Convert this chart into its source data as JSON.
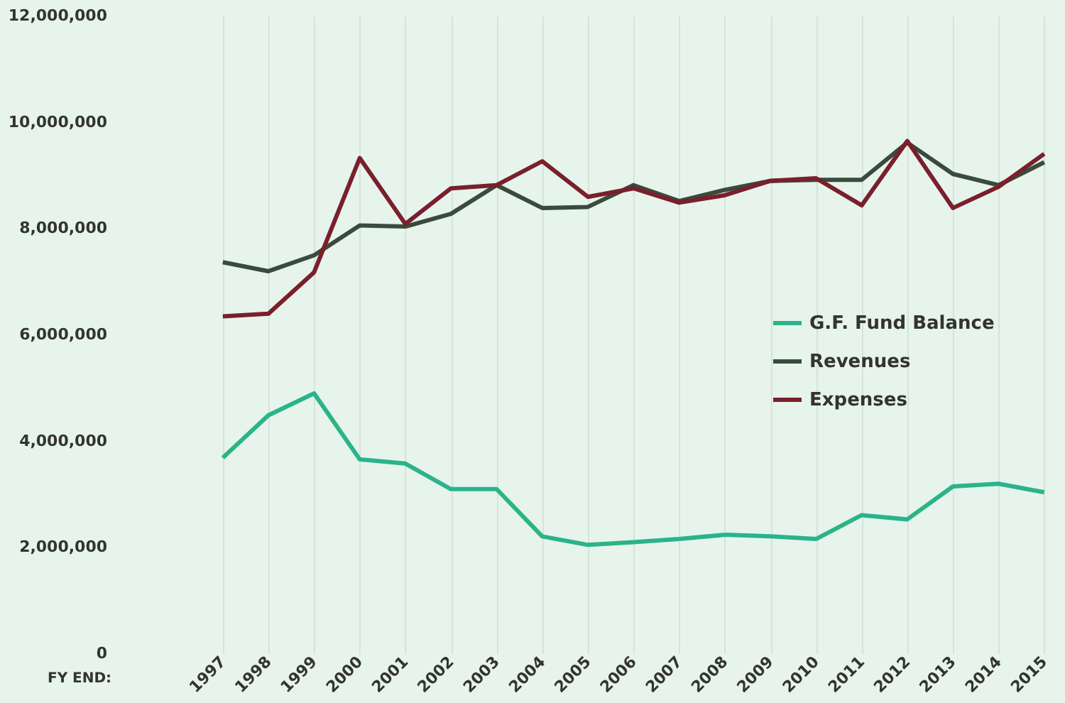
{
  "chart_data": {
    "type": "line",
    "xlabel": "FY END:",
    "categories": [
      "1997",
      "1998",
      "1999",
      "2000",
      "2001",
      "2002",
      "2003",
      "2004",
      "2005",
      "2006",
      "2007",
      "2008",
      "2009",
      "2010",
      "2011",
      "2012",
      "2013",
      "2014",
      "2015"
    ],
    "series": [
      {
        "name": "G.F. Fund Balance",
        "color": "#2bb38a",
        "values": [
          3680000,
          4480000,
          4890000,
          3650000,
          3570000,
          3090000,
          3090000,
          2200000,
          2040000,
          2090000,
          2150000,
          2230000,
          2200000,
          2150000,
          2600000,
          2520000,
          3140000,
          3190000,
          3030000
        ]
      },
      {
        "name": "Revenues",
        "color": "#3a4a3c",
        "values": [
          7360000,
          7190000,
          7490000,
          8050000,
          8030000,
          8270000,
          8810000,
          8380000,
          8400000,
          8810000,
          8510000,
          8720000,
          8890000,
          8910000,
          8910000,
          9610000,
          9020000,
          8810000,
          9240000
        ]
      },
      {
        "name": "Expenses",
        "color": "#7a1f2b",
        "values": [
          6340000,
          6390000,
          7170000,
          9320000,
          8080000,
          8750000,
          8810000,
          9260000,
          8590000,
          8750000,
          8480000,
          8620000,
          8890000,
          8940000,
          8430000,
          9640000,
          8380000,
          8780000,
          9400000
        ]
      }
    ],
    "ylim": [
      0,
      12000000
    ],
    "yticks": [
      0,
      {
        "value": 2000000,
        "label": "2,000,000"
      },
      {
        "value": 4000000,
        "label": "4,000,000"
      },
      {
        "value": 6000000,
        "label": "6,000,000"
      },
      {
        "value": 8000000,
        "label": "8,000,000"
      },
      {
        "value": 10000000,
        "label": "10,000,000"
      },
      {
        "value": 12000000,
        "label": "12,000,000"
      }
    ],
    "grid": "x",
    "legend": "right",
    "line_style": "solid",
    "marker": "none"
  }
}
